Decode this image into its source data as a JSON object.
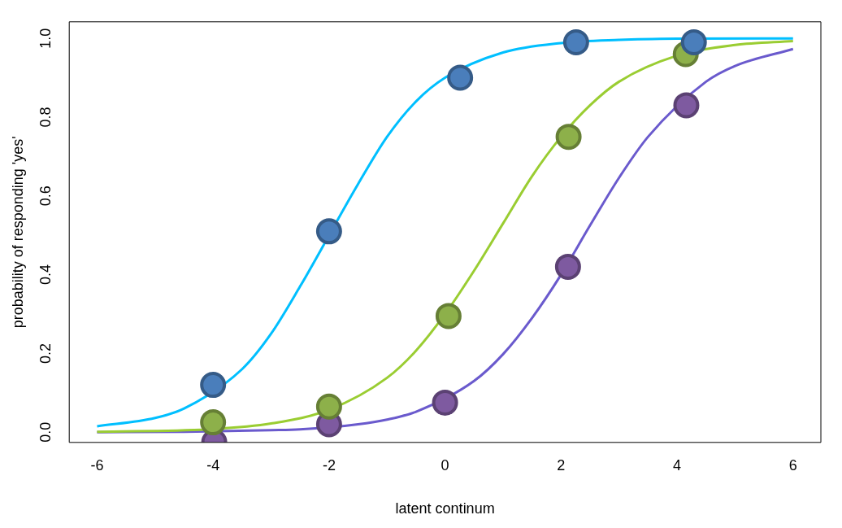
{
  "chart_data": {
    "type": "line",
    "xlabel": "latent continum",
    "ylabel": "probability of responding 'yes'",
    "xlim": [
      -6.48,
      6.48
    ],
    "ylim": [
      -0.026,
      1.042
    ],
    "xticks": [
      -6,
      -4,
      -2,
      0,
      2,
      4,
      6
    ],
    "yticks": [
      {
        "value": 0,
        "label": "0.0"
      },
      {
        "value": 0.2,
        "label": "0.2"
      },
      {
        "value": 0.4,
        "label": "0.4"
      },
      {
        "value": 0.6,
        "label": "0.6"
      },
      {
        "value": 0.8,
        "label": "0.8"
      },
      {
        "value": 1,
        "label": "1.0"
      }
    ],
    "grid": false,
    "legend": false,
    "marker": "none",
    "line_style": "solid",
    "series": [
      {
        "color": "#00bfff",
        "x": [
          -6,
          -5,
          -4.5,
          -3.5,
          -3,
          -2.5,
          -1.5,
          -1,
          -0.5,
          0,
          1,
          2,
          3,
          4,
          6
        ],
        "values": [
          0.015,
          0.036,
          0.06,
          0.16,
          0.25,
          0.37,
          0.63,
          0.75,
          0.84,
          0.9,
          0.964,
          0.988,
          0.996,
          0.999,
          1.0
        ]
      },
      {
        "color": "#9acd32",
        "x": [
          -6,
          -4,
          -3,
          -2,
          -1,
          -0.5,
          0,
          0.5,
          1,
          1.5,
          2,
          2.5,
          3,
          4,
          5,
          6
        ],
        "values": [
          0.001,
          0.008,
          0.022,
          0.057,
          0.138,
          0.207,
          0.3,
          0.41,
          0.53,
          0.65,
          0.75,
          0.83,
          0.89,
          0.956,
          0.983,
          0.993
        ]
      },
      {
        "color": "#6a5acd",
        "x": [
          -6,
          -4.5,
          -3,
          -2.5,
          -1.5,
          -1,
          -0.5,
          0.5,
          1,
          1.5,
          2,
          2.5,
          3,
          3.5,
          4.5,
          5,
          6
        ],
        "values": [
          0,
          0.001,
          0.005,
          0.007,
          0.02,
          0.032,
          0.052,
          0.13,
          0.198,
          0.29,
          0.4,
          0.525,
          0.646,
          0.75,
          0.89,
          0.93,
          0.973
        ]
      },
      {
        "type": "scatter",
        "marker": "circle",
        "color": "#4a7ebb",
        "x": [
          -4,
          -2,
          0.26,
          2.26,
          4.29
        ],
        "values": [
          0.12,
          0.51,
          0.9,
          0.99,
          0.99
        ]
      },
      {
        "type": "scatter",
        "marker": "circle",
        "color": "#8db04a",
        "x": [
          -4,
          -2,
          0.06,
          2.13,
          4.15
        ],
        "values": [
          0.025,
          0.065,
          0.295,
          0.75,
          0.96
        ]
      },
      {
        "type": "scatter",
        "marker": "circle",
        "color": "#7e5aa0",
        "x": [
          -3.98,
          -2,
          0,
          2.12,
          4.16
        ],
        "values": [
          -0.025,
          0.02,
          0.075,
          0.42,
          0.83
        ]
      }
    ]
  }
}
